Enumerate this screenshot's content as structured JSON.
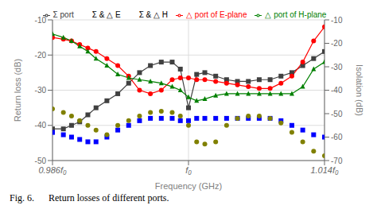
{
  "chart_data": {
    "type": "line",
    "caption": "Fig. 6.      Return losses of different ports.",
    "xlabel": "Frequency (GHz)",
    "ylabel": "Return loss (dB)",
    "y2label": "Isolation (dB)",
    "xlim": [
      0.0,
      1.0
    ],
    "xticks": [
      {
        "value": 0.0,
        "label": "0.986f₀"
      },
      {
        "value": 0.5,
        "label": "f₀"
      },
      {
        "value": 1.0,
        "label": "1.014f₀"
      }
    ],
    "ylim": [
      -50,
      -10
    ],
    "yticks": [
      -50,
      -40,
      -30,
      -20,
      -10
    ],
    "y2lim": [
      -70,
      -10
    ],
    "y2ticks": [
      -70,
      -60,
      -50,
      -40,
      -30,
      -20,
      -10
    ],
    "grid": true,
    "legend": "top",
    "x": [
      0.0,
      0.04,
      0.07,
      0.1,
      0.13,
      0.16,
      0.2,
      0.24,
      0.28,
      0.32,
      0.36,
      0.4,
      0.44,
      0.47,
      0.5,
      0.53,
      0.56,
      0.6,
      0.64,
      0.68,
      0.72,
      0.76,
      0.8,
      0.84,
      0.88,
      0.92,
      0.96,
      1.0
    ],
    "series": [
      {
        "name": "Σ  port",
        "color": "#404040",
        "marker": "square",
        "values": [
          -41,
          -41,
          -40,
          -39,
          -37,
          -35,
          -33,
          -31,
          -28,
          -25,
          -23,
          -22,
          -22,
          -24,
          -35,
          -25.5,
          -25,
          -26,
          -27,
          -27.5,
          -27.5,
          -27,
          -27,
          -26,
          -25,
          -23,
          -21,
          -19
        ]
      },
      {
        "name": "△ port of E-plane",
        "color": "#ff0000",
        "marker": "circle",
        "values": [
          -15,
          -15.5,
          -16,
          -17,
          -18,
          -19,
          -21,
          -23,
          -26,
          -30,
          -31,
          -30,
          -27,
          -26.5,
          -26.5,
          -27,
          -27,
          -27.5,
          -28,
          -28.5,
          -29,
          -29.5,
          -29.5,
          -28,
          -26,
          -22,
          -16,
          -12
        ]
      },
      {
        "name": "△ port of H-plane",
        "color": "#008000",
        "marker": "triangle",
        "values": [
          -14,
          -15,
          -16,
          -17.5,
          -19,
          -21,
          -23,
          -25.5,
          -26.5,
          -27,
          -27.5,
          -28,
          -29,
          -30,
          -32,
          -33,
          -32.5,
          -31.5,
          -31,
          -31,
          -31,
          -31,
          -31,
          -31,
          -31,
          -29,
          -24,
          -22
        ]
      },
      {
        "name": "Σ & △ E",
        "type": "scatter",
        "axis": "y2",
        "color": "#0000ff",
        "marker": "square",
        "values": [
          -58,
          -59,
          -60,
          -61,
          -62,
          -62,
          -60,
          -57,
          -55,
          -53,
          -52,
          -52,
          -52,
          -53,
          -53,
          -52,
          -52,
          -52,
          -52,
          -52,
          -52,
          -52,
          -52,
          -53,
          -55,
          -57,
          -59,
          -60
        ]
      },
      {
        "name": "Σ & △ H",
        "type": "scatter",
        "axis": "y2",
        "color": "#808000",
        "marker": "circle",
        "values": [
          -48,
          -49.5,
          -51,
          -53,
          -55,
          -57,
          -59,
          -55,
          -53,
          -51,
          -49.5,
          -49,
          -49.5,
          -51,
          -55,
          -62,
          -63,
          -62,
          -55,
          -52,
          -51,
          -51,
          -52,
          -54,
          -58,
          -62,
          -66,
          -68
        ]
      }
    ]
  }
}
